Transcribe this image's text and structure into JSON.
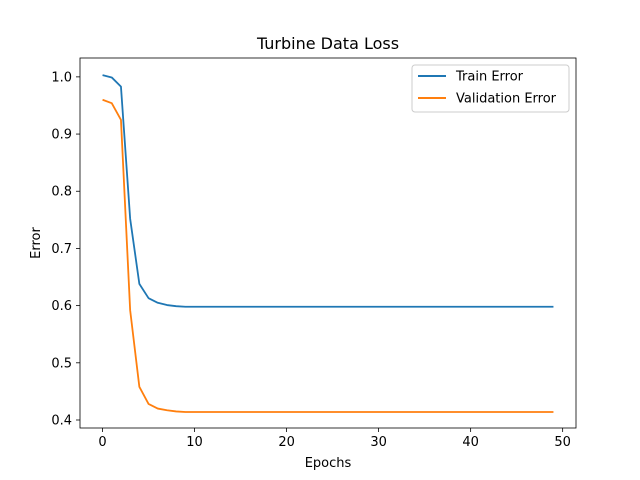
{
  "chart_data": {
    "type": "line",
    "title": "Turbine Data Loss",
    "xlabel": "Epochs",
    "ylabel": "Error",
    "xlim": [
      -2.45,
      51.45
    ],
    "ylim": [
      0.386,
      1.033
    ],
    "xticks": [
      0,
      10,
      20,
      30,
      40,
      50
    ],
    "yticks": [
      0.4,
      0.5,
      0.6,
      0.7,
      0.8,
      0.9,
      1.0
    ],
    "xtick_labels": [
      "0",
      "10",
      "20",
      "30",
      "40",
      "50"
    ],
    "ytick_labels": [
      "0.4",
      "0.5",
      "0.6",
      "0.7",
      "0.8",
      "0.9",
      "1.0"
    ],
    "grid": false,
    "legend_position": "top-right",
    "x": [
      0,
      1,
      2,
      3,
      4,
      5,
      6,
      7,
      8,
      9,
      10,
      11,
      12,
      13,
      14,
      15,
      16,
      17,
      18,
      19,
      20,
      21,
      22,
      23,
      24,
      25,
      26,
      27,
      28,
      29,
      30,
      31,
      32,
      33,
      34,
      35,
      36,
      37,
      38,
      39,
      40,
      41,
      42,
      43,
      44,
      45,
      46,
      47,
      48,
      49
    ],
    "series": [
      {
        "name": "Train Error",
        "color": "#1f77b4",
        "values": [
          1.003,
          0.999,
          0.983,
          0.752,
          0.638,
          0.613,
          0.605,
          0.601,
          0.599,
          0.598,
          0.598,
          0.598,
          0.598,
          0.598,
          0.598,
          0.598,
          0.598,
          0.598,
          0.598,
          0.598,
          0.598,
          0.598,
          0.598,
          0.598,
          0.598,
          0.598,
          0.598,
          0.598,
          0.598,
          0.598,
          0.598,
          0.598,
          0.598,
          0.598,
          0.598,
          0.598,
          0.598,
          0.598,
          0.598,
          0.598,
          0.598,
          0.598,
          0.598,
          0.598,
          0.598,
          0.598,
          0.598,
          0.598,
          0.598,
          0.598
        ]
      },
      {
        "name": "Validation Error",
        "color": "#ff7f0e",
        "values": [
          0.96,
          0.954,
          0.925,
          0.592,
          0.458,
          0.428,
          0.42,
          0.417,
          0.415,
          0.414,
          0.414,
          0.414,
          0.414,
          0.414,
          0.414,
          0.414,
          0.414,
          0.414,
          0.414,
          0.414,
          0.414,
          0.414,
          0.414,
          0.414,
          0.414,
          0.414,
          0.414,
          0.414,
          0.414,
          0.414,
          0.414,
          0.414,
          0.414,
          0.414,
          0.414,
          0.414,
          0.414,
          0.414,
          0.414,
          0.414,
          0.414,
          0.414,
          0.414,
          0.414,
          0.414,
          0.414,
          0.414,
          0.414,
          0.414,
          0.414
        ]
      }
    ]
  }
}
